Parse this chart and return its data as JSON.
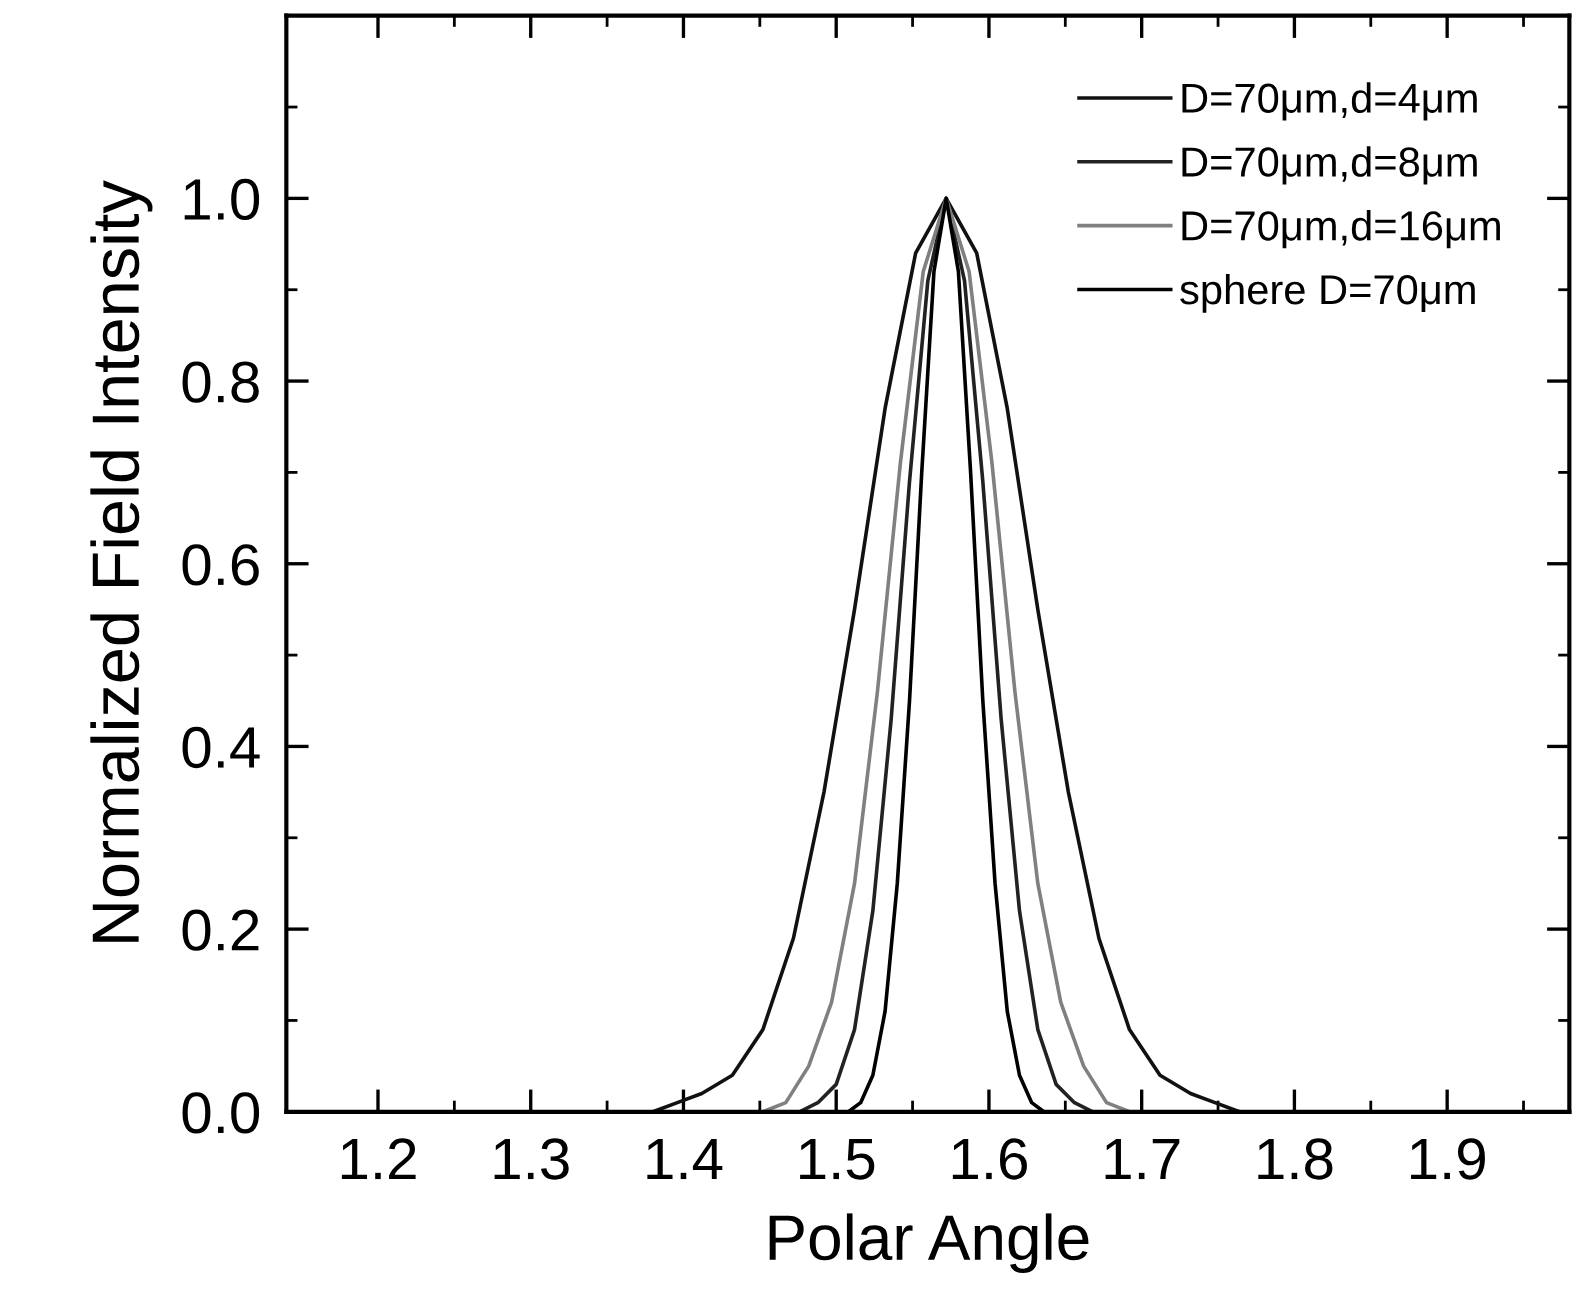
{
  "chart_data": {
    "type": "line",
    "xlabel": "Polar Angle",
    "ylabel": "Normalized Field Intensity",
    "xlim": [
      1.14,
      1.98
    ],
    "ylim": [
      0,
      1.2
    ],
    "xticks": [
      1.2,
      1.3,
      1.4,
      1.5,
      1.6,
      1.7,
      1.8,
      1.9,
      {
        "value": 1.25,
        "label": null
      },
      {
        "value": 1.35,
        "label": null
      },
      {
        "value": 1.45,
        "label": null
      },
      {
        "value": 1.55,
        "label": null
      },
      {
        "value": 1.65,
        "label": null
      },
      {
        "value": 1.75,
        "label": null
      },
      {
        "value": 1.85,
        "label": null
      },
      {
        "value": 1.95,
        "label": null
      }
    ],
    "yticks": [
      {
        "value": 0,
        "label": "0.0"
      },
      0.2,
      0.4,
      0.6,
      0.8,
      {
        "value": 1,
        "label": "1.0"
      },
      {
        "value": 0.1,
        "label": null
      },
      {
        "value": 0.3,
        "label": null
      },
      {
        "value": 0.5,
        "label": null
      },
      {
        "value": 0.7,
        "label": null
      },
      {
        "value": 0.9,
        "label": null
      },
      {
        "value": 1.1,
        "label": null
      }
    ],
    "grid": false,
    "legend": "top right",
    "marker": "none",
    "line_style": "solid",
    "series": [
      {
        "name": "D=70μm,d=4μm",
        "color": "#111111",
        "x": [
          1.14,
          1.38,
          1.396,
          1.412,
          1.432,
          1.452,
          1.472,
          1.492,
          1.512,
          1.532,
          1.552,
          1.572,
          1.592,
          1.612,
          1.632,
          1.652,
          1.672,
          1.692,
          1.712,
          1.732,
          1.748,
          1.764,
          1.98
        ],
        "values": [
          0,
          0,
          0.01,
          0.02,
          0.04,
          0.09,
          0.19,
          0.35,
          0.55,
          0.77,
          0.94,
          1,
          0.94,
          0.77,
          0.55,
          0.35,
          0.19,
          0.09,
          0.04,
          0.02,
          0.01,
          0,
          0
        ]
      },
      {
        "name": "D=70μm,d=8μm",
        "color": "#222222",
        "x": [
          1.14,
          1.476,
          1.488,
          1.5,
          1.512,
          1.524,
          1.536,
          1.548,
          1.56,
          1.572,
          1.584,
          1.596,
          1.608,
          1.62,
          1.632,
          1.644,
          1.656,
          1.668,
          1.98
        ],
        "values": [
          0,
          0,
          0.01,
          0.03,
          0.09,
          0.22,
          0.43,
          0.69,
          0.91,
          1,
          0.91,
          0.69,
          0.43,
          0.22,
          0.09,
          0.03,
          0.01,
          0,
          0
        ]
      },
      {
        "name": "D=70μm,d=16μm",
        "color": "#808080",
        "x": [
          1.14,
          1.452,
          1.467,
          1.482,
          1.497,
          1.512,
          1.527,
          1.542,
          1.557,
          1.572,
          1.587,
          1.602,
          1.617,
          1.632,
          1.647,
          1.662,
          1.677,
          1.692,
          1.98
        ],
        "values": [
          0,
          0,
          0.01,
          0.05,
          0.12,
          0.25,
          0.46,
          0.71,
          0.92,
          1,
          0.92,
          0.71,
          0.46,
          0.25,
          0.12,
          0.05,
          0.01,
          0,
          0
        ]
      },
      {
        "name": "sphere D=70μm",
        "color": "#000000",
        "x": [
          1.14,
          1.508,
          1.516,
          1.524,
          1.532,
          1.54,
          1.548,
          1.556,
          1.564,
          1.572,
          1.58,
          1.588,
          1.596,
          1.604,
          1.612,
          1.62,
          1.628,
          1.636,
          1.98
        ],
        "values": [
          0,
          0,
          0.01,
          0.04,
          0.11,
          0.25,
          0.45,
          0.7,
          0.92,
          1,
          0.92,
          0.7,
          0.45,
          0.25,
          0.11,
          0.04,
          0.01,
          0,
          0
        ]
      }
    ]
  }
}
